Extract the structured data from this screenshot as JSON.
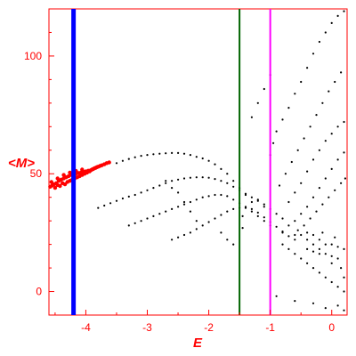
{
  "chart_data": {
    "type": "scatter",
    "title": "",
    "xlabel": "E",
    "ylabel": "<M>",
    "xlim": [
      -4.6,
      0.25
    ],
    "ylim": [
      -10,
      120
    ],
    "grid": false,
    "x_ticks": [
      -4,
      -3,
      -2,
      -1,
      0
    ],
    "x_tick_labels": [
      "-4",
      "-3",
      "-2",
      "-1",
      "0"
    ],
    "y_ticks": [
      0,
      50,
      100
    ],
    "y_tick_labels": [
      "0",
      "50",
      "100"
    ],
    "vertical_lines": [
      {
        "x": -4.2,
        "color": "#0000ff"
      },
      {
        "x": -1.5,
        "color": "#006400"
      },
      {
        "x": -1.0,
        "color": "#ff00ff"
      }
    ],
    "series": [
      {
        "color": "#ff0000",
        "points": [
          [
            -4.58,
            44.5
          ],
          [
            -4.55,
            45.0
          ],
          [
            -4.52,
            45.5
          ],
          [
            -4.5,
            44.0
          ],
          [
            -4.48,
            46.0
          ],
          [
            -4.46,
            45.2
          ],
          [
            -4.44,
            47.0
          ],
          [
            -4.42,
            44.8
          ],
          [
            -4.4,
            47.5
          ],
          [
            -4.38,
            46.0
          ],
          [
            -4.36,
            48.0
          ],
          [
            -4.34,
            45.5
          ],
          [
            -4.32,
            48.5
          ],
          [
            -4.3,
            46.5
          ],
          [
            -4.28,
            49.0
          ],
          [
            -4.26,
            47.0
          ],
          [
            -4.24,
            49.5
          ],
          [
            -4.22,
            47.5
          ],
          [
            -4.2,
            49.8
          ],
          [
            -4.18,
            48.0
          ],
          [
            -4.16,
            50.0
          ],
          [
            -4.14,
            48.5
          ],
          [
            -4.12,
            50.3
          ],
          [
            -4.1,
            49.0
          ],
          [
            -4.08,
            50.5
          ],
          [
            -4.06,
            49.5
          ],
          [
            -4.04,
            50.8
          ],
          [
            -4.02,
            50.0
          ],
          [
            -4.0,
            51.0
          ],
          [
            -3.98,
            50.5
          ],
          [
            -3.96,
            51.3
          ],
          [
            -3.94,
            51.0
          ],
          [
            -3.92,
            51.5
          ],
          [
            -3.9,
            51.8
          ],
          [
            -3.88,
            52.0
          ],
          [
            -3.86,
            52.3
          ],
          [
            -3.84,
            52.5
          ],
          [
            -3.82,
            52.8
          ],
          [
            -3.8,
            53.0
          ],
          [
            -3.77,
            53.3
          ],
          [
            -3.74,
            53.6
          ],
          [
            -3.7,
            54.0
          ],
          [
            -3.66,
            54.5
          ],
          [
            -3.62,
            54.8
          ],
          [
            -4.56,
            46.5
          ],
          [
            -4.46,
            48.0
          ],
          [
            -4.36,
            49.5
          ],
          [
            -4.26,
            50.5
          ],
          [
            -4.16,
            51.2
          ],
          [
            -4.06,
            51.8
          ]
        ]
      },
      {
        "color": "#000000",
        "points": [
          [
            -3.5,
            54.5
          ],
          [
            -3.4,
            55.5
          ],
          [
            -3.3,
            56.3
          ],
          [
            -3.2,
            57.0
          ],
          [
            -3.1,
            57.6
          ],
          [
            -3.0,
            58.0
          ],
          [
            -2.9,
            58.3
          ],
          [
            -2.8,
            58.5
          ],
          [
            -2.7,
            58.7
          ],
          [
            -2.6,
            58.8
          ],
          [
            -2.5,
            58.8
          ],
          [
            -2.4,
            58.5
          ],
          [
            -2.3,
            58.0
          ],
          [
            -2.2,
            57.2
          ],
          [
            -2.1,
            56.5
          ],
          [
            -2.0,
            55.5
          ],
          [
            -1.9,
            54.0
          ],
          [
            -1.8,
            52.0
          ],
          [
            -1.7,
            50.0
          ],
          [
            -1.6,
            47.0
          ],
          [
            -1.5,
            44.0
          ],
          [
            -1.4,
            41.0
          ],
          [
            -1.3,
            38.0
          ],
          [
            -3.8,
            35.5
          ],
          [
            -3.7,
            36.5
          ],
          [
            -3.6,
            37.5
          ],
          [
            -3.5,
            38.5
          ],
          [
            -3.4,
            39.5
          ],
          [
            -3.3,
            40.3
          ],
          [
            -3.2,
            41.0
          ],
          [
            -3.1,
            42.0
          ],
          [
            -3.0,
            43.0
          ],
          [
            -2.9,
            44.0
          ],
          [
            -2.8,
            45.0
          ],
          [
            -2.7,
            46.0
          ],
          [
            -2.6,
            47.0
          ],
          [
            -2.5,
            47.5
          ],
          [
            -2.4,
            48.0
          ],
          [
            -2.3,
            48.3
          ],
          [
            -2.2,
            48.5
          ],
          [
            -2.1,
            48.5
          ],
          [
            -2.0,
            48.3
          ],
          [
            -1.9,
            47.8
          ],
          [
            -1.8,
            47.0
          ],
          [
            -1.7,
            46.0
          ],
          [
            -1.6,
            44.5
          ],
          [
            -1.5,
            43.0
          ],
          [
            -1.4,
            41.5
          ],
          [
            -1.3,
            40.0
          ],
          [
            -1.2,
            38.5
          ],
          [
            -1.1,
            37.0
          ],
          [
            -1.0,
            35.0
          ],
          [
            -0.9,
            33.0
          ],
          [
            -3.3,
            28.0
          ],
          [
            -3.2,
            29.0
          ],
          [
            -3.1,
            30.0
          ],
          [
            -3.0,
            31.0
          ],
          [
            -2.9,
            32.0
          ],
          [
            -2.8,
            33.0
          ],
          [
            -2.7,
            34.0
          ],
          [
            -2.6,
            35.0
          ],
          [
            -2.5,
            36.0
          ],
          [
            -2.4,
            37.0
          ],
          [
            -2.3,
            38.0
          ],
          [
            -2.2,
            39.0
          ],
          [
            -2.1,
            40.0
          ],
          [
            -2.0,
            40.5
          ],
          [
            -1.9,
            41.0
          ],
          [
            -1.8,
            41.0
          ],
          [
            -1.7,
            40.5
          ],
          [
            -1.6,
            39.0
          ],
          [
            -1.5,
            37.5
          ],
          [
            -1.4,
            36.0
          ],
          [
            -1.3,
            34.0
          ],
          [
            -1.2,
            32.0
          ],
          [
            -1.1,
            30.0
          ],
          [
            -1.0,
            28.0
          ],
          [
            -2.6,
            22.0
          ],
          [
            -2.5,
            23.0
          ],
          [
            -2.4,
            24.0
          ],
          [
            -2.3,
            25.0
          ],
          [
            -2.2,
            26.5
          ],
          [
            -2.1,
            28.0
          ],
          [
            -2.0,
            29.5
          ],
          [
            -1.9,
            31.0
          ],
          [
            -1.8,
            32.5
          ],
          [
            -1.7,
            34.0
          ],
          [
            -1.6,
            35.0
          ],
          [
            -1.5,
            35.5
          ],
          [
            -1.4,
            35.5
          ],
          [
            -1.3,
            35.0
          ],
          [
            -1.2,
            33.5
          ],
          [
            -1.1,
            31.5
          ],
          [
            -1.0,
            29.5
          ],
          [
            -0.9,
            27.5
          ],
          [
            -0.8,
            25.5
          ],
          [
            -0.7,
            23.5
          ],
          [
            -0.6,
            22.0
          ],
          [
            -2.7,
            47.0
          ],
          [
            -2.6,
            44.0
          ],
          [
            -2.5,
            42.0
          ],
          [
            -2.4,
            38.0
          ],
          [
            -2.3,
            34.0
          ],
          [
            -2.2,
            30.0
          ],
          [
            -1.8,
            25.0
          ],
          [
            -1.7,
            22.0
          ],
          [
            -1.6,
            20.0
          ],
          [
            -1.45,
            27.0
          ],
          [
            -1.45,
            32.0
          ],
          [
            -1.0,
            58.0
          ],
          [
            -0.95,
            63.0
          ],
          [
            -0.9,
            68.0
          ],
          [
            -0.8,
            73.0
          ],
          [
            -0.7,
            78.0
          ],
          [
            -0.6,
            84.0
          ],
          [
            -0.5,
            89.0
          ],
          [
            -0.4,
            95.0
          ],
          [
            -0.3,
            101.0
          ],
          [
            -0.2,
            106.0
          ],
          [
            -0.1,
            110.0
          ],
          [
            0.0,
            114.0
          ],
          [
            0.1,
            117.0
          ],
          [
            0.2,
            119.0
          ],
          [
            -0.85,
            45.0
          ],
          [
            -0.75,
            50.0
          ],
          [
            -0.65,
            55.0
          ],
          [
            -0.55,
            60.0
          ],
          [
            -0.45,
            65.0
          ],
          [
            -0.35,
            70.0
          ],
          [
            -0.25,
            75.0
          ],
          [
            -0.15,
            80.0
          ],
          [
            -0.05,
            85.0
          ],
          [
            0.05,
            89.0
          ],
          [
            0.15,
            93.0
          ],
          [
            -1.3,
            74.0
          ],
          [
            -1.2,
            80.0
          ],
          [
            -1.1,
            86.0
          ],
          [
            -1.0,
            92.0
          ],
          [
            -0.7,
            38.0
          ],
          [
            -0.6,
            42.0
          ],
          [
            -0.5,
            46.0
          ],
          [
            -0.4,
            51.0
          ],
          [
            -0.3,
            56.0
          ],
          [
            -0.2,
            60.0
          ],
          [
            -0.1,
            64.0
          ],
          [
            0.0,
            67.0
          ],
          [
            0.1,
            70.0
          ],
          [
            0.2,
            72.0
          ],
          [
            -0.6,
            30.0
          ],
          [
            -0.5,
            33.0
          ],
          [
            -0.4,
            36.0
          ],
          [
            -0.3,
            40.0
          ],
          [
            -0.2,
            44.0
          ],
          [
            -0.1,
            48.0
          ],
          [
            0.0,
            52.0
          ],
          [
            0.1,
            56.0
          ],
          [
            0.2,
            59.0
          ],
          [
            -0.55,
            26.0
          ],
          [
            -0.45,
            28.0
          ],
          [
            -0.35,
            31.0
          ],
          [
            -0.25,
            34.0
          ],
          [
            -0.15,
            37.0
          ],
          [
            -0.05,
            40.0
          ],
          [
            0.05,
            43.0
          ],
          [
            0.15,
            46.0
          ],
          [
            0.22,
            48.0
          ],
          [
            -1.2,
            39.0
          ],
          [
            -1.1,
            36.0
          ],
          [
            -0.8,
            31.0
          ],
          [
            -0.7,
            28.0
          ],
          [
            -0.5,
            24.0
          ],
          [
            -0.4,
            22.0
          ],
          [
            -0.3,
            20.0
          ],
          [
            -0.2,
            18.0
          ],
          [
            -0.1,
            16.0
          ],
          [
            0.0,
            15.0
          ],
          [
            0.1,
            14.0
          ],
          [
            -0.8,
            20.0
          ],
          [
            -0.7,
            18.0
          ],
          [
            -0.6,
            16.0
          ],
          [
            -0.5,
            14.0
          ],
          [
            -0.4,
            12.0
          ],
          [
            -0.3,
            10.0
          ],
          [
            -0.2,
            8.0
          ],
          [
            -0.1,
            6.0
          ],
          [
            0.0,
            4.0
          ],
          [
            0.1,
            2.0
          ],
          [
            0.2,
            0.0
          ],
          [
            -0.3,
            24.0
          ],
          [
            -0.2,
            22.0
          ],
          [
            -0.1,
            20.0
          ],
          [
            0.0,
            20.0
          ],
          [
            0.1,
            19.0
          ],
          [
            0.2,
            18.0
          ],
          [
            -0.4,
            18.0
          ],
          [
            -0.2,
            16.0
          ],
          [
            0.0,
            12.0
          ],
          [
            0.15,
            10.0
          ],
          [
            0.2,
            6.0
          ],
          [
            -0.9,
            -2.0
          ],
          [
            -0.6,
            -4.0
          ],
          [
            -0.3,
            -5.0
          ],
          [
            -0.1,
            -7.0
          ],
          [
            0.1,
            -6.0
          ],
          [
            0.2,
            -8.0
          ],
          [
            -0.8,
            25.0
          ],
          [
            -0.6,
            24.0
          ],
          [
            -0.4,
            25.0
          ],
          [
            -0.3,
            17.0
          ],
          [
            -0.15,
            25.0
          ],
          [
            0.05,
            23.0
          ]
        ]
      }
    ]
  }
}
